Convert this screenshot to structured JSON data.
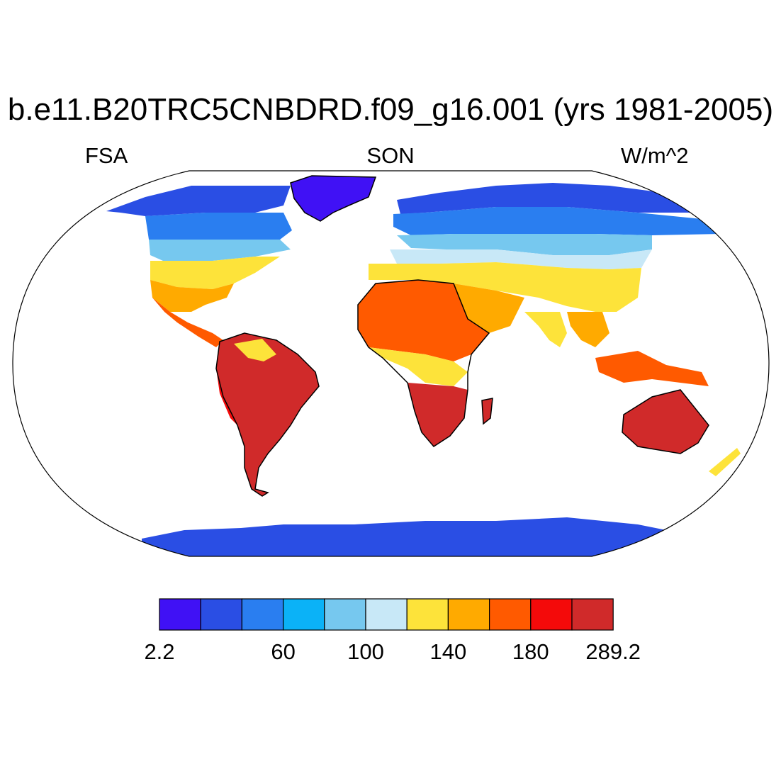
{
  "title": "b.e11.B20TRC5CNBDRD.f09_g16.001 (yrs 1981-2005)",
  "left_label": "FSA",
  "center_label": "SON",
  "right_label": "W/m^2",
  "colorbar": {
    "colors": [
      "#4011f5",
      "#2a4ee4",
      "#2a7ef0",
      "#0bb2f7",
      "#76c8ef",
      "#c8e8f7",
      "#fde33a",
      "#ffaa00",
      "#ff5a00",
      "#f40a0a",
      "#d02a2a"
    ],
    "tick_labels": [
      {
        "text": "2.2",
        "box": 0
      },
      {
        "text": "60",
        "box": 3
      },
      {
        "text": "100",
        "box": 5
      },
      {
        "text": "140",
        "box": 7
      },
      {
        "text": "180",
        "box": 9
      },
      {
        "text": "289.2",
        "box": 11
      }
    ]
  }
}
